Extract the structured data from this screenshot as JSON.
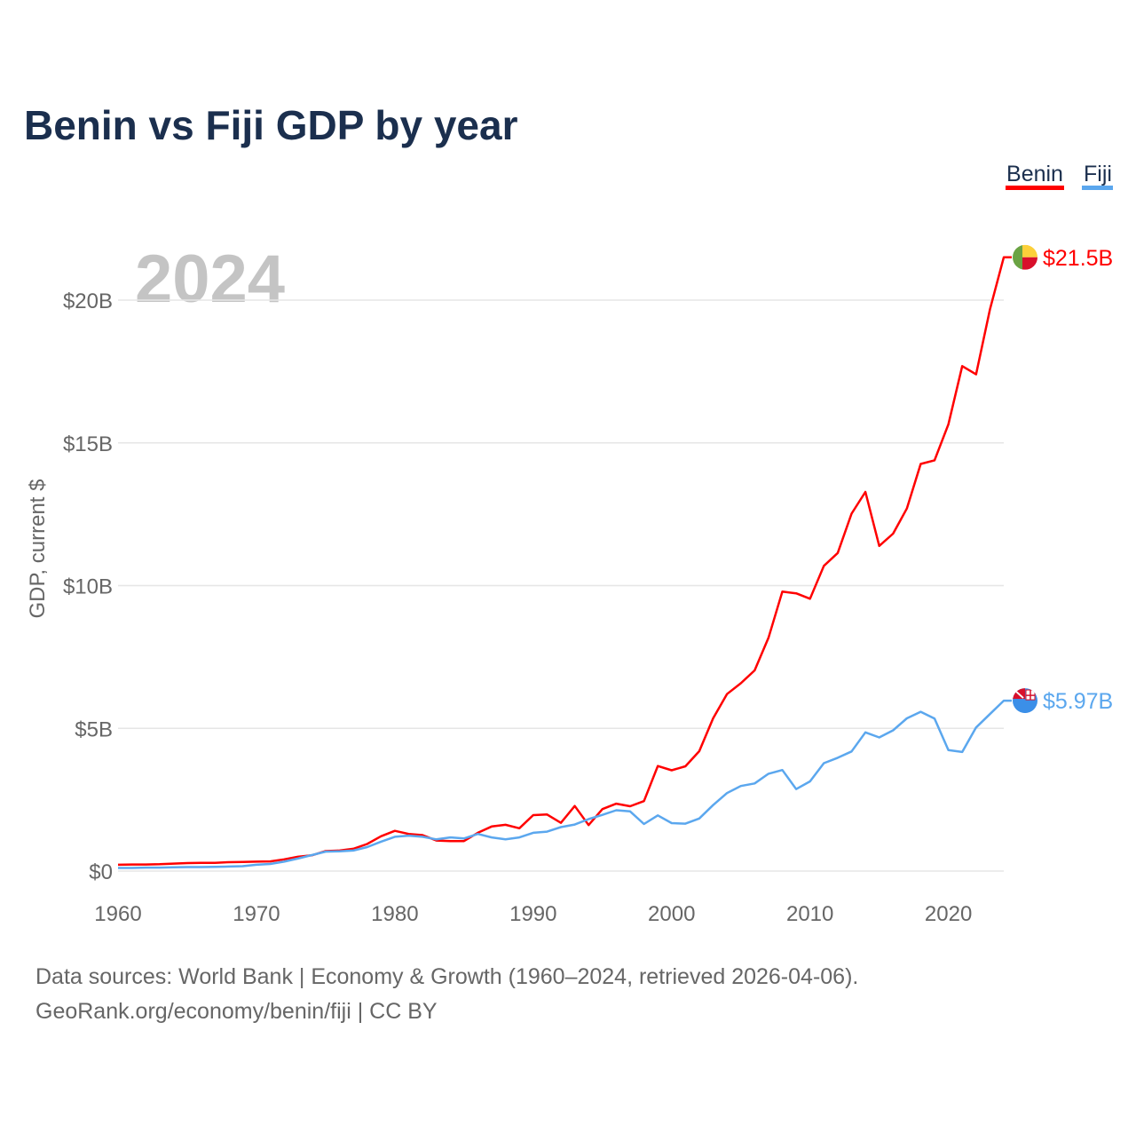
{
  "colors": {
    "benin": "#ff0000",
    "fiji": "#5ba7ee",
    "title": "#1b2f4e",
    "muted": "#666666",
    "grid": "#e6e6e6",
    "year": "#c4c4c4"
  },
  "chart_data": {
    "type": "line",
    "title": "Benin vs Fiji GDP by year",
    "ylabel": "GDP, current $",
    "xlabel": "",
    "current_year_label": "2024",
    "xlim": [
      1960,
      2024
    ],
    "ylim": [
      0,
      22
    ],
    "grid": true,
    "legend_placement": "top-right",
    "x_ticks": [
      1960,
      1970,
      1980,
      1990,
      2000,
      2010,
      2020
    ],
    "x_tick_labels": [
      "1960",
      "1970",
      "1980",
      "1990",
      "2000",
      "2010",
      "2020"
    ],
    "y_ticks": [
      0,
      5,
      10,
      15,
      20
    ],
    "y_tick_labels": [
      "$0",
      "$5B",
      "$10B",
      "$15B",
      "$20B"
    ],
    "x": [
      1960,
      1961,
      1962,
      1963,
      1964,
      1965,
      1966,
      1967,
      1968,
      1969,
      1970,
      1971,
      1972,
      1973,
      1974,
      1975,
      1976,
      1977,
      1978,
      1979,
      1980,
      1981,
      1982,
      1983,
      1984,
      1985,
      1986,
      1987,
      1988,
      1989,
      1990,
      1991,
      1992,
      1993,
      1994,
      1995,
      1996,
      1997,
      1998,
      1999,
      2000,
      2001,
      2002,
      2003,
      2004,
      2005,
      2006,
      2007,
      2008,
      2009,
      2010,
      2011,
      2012,
      2013,
      2014,
      2015,
      2016,
      2017,
      2018,
      2019,
      2020,
      2021,
      2022,
      2023,
      2024
    ],
    "series": [
      {
        "name": "Benin",
        "end_label": "$21.5B",
        "values": [
          0.22,
          0.23,
          0.23,
          0.24,
          0.26,
          0.28,
          0.29,
          0.29,
          0.31,
          0.32,
          0.33,
          0.34,
          0.41,
          0.5,
          0.55,
          0.7,
          0.72,
          0.78,
          0.95,
          1.22,
          1.41,
          1.3,
          1.26,
          1.07,
          1.05,
          1.05,
          1.34,
          1.56,
          1.62,
          1.5,
          1.96,
          1.98,
          1.69,
          2.28,
          1.61,
          2.17,
          2.36,
          2.27,
          2.45,
          3.68,
          3.53,
          3.67,
          4.2,
          5.35,
          6.2,
          6.58,
          7.03,
          8.17,
          9.79,
          9.73,
          9.54,
          10.69,
          11.14,
          12.52,
          13.28,
          11.39,
          11.82,
          12.7,
          14.26,
          14.39,
          15.65,
          17.69,
          17.4,
          19.67,
          21.5
        ]
      },
      {
        "name": "Fiji",
        "end_label": "$5.97B",
        "values": [
          0.11,
          0.11,
          0.12,
          0.12,
          0.13,
          0.14,
          0.14,
          0.15,
          0.16,
          0.17,
          0.22,
          0.25,
          0.33,
          0.44,
          0.56,
          0.68,
          0.69,
          0.72,
          0.84,
          1.03,
          1.2,
          1.24,
          1.2,
          1.11,
          1.18,
          1.14,
          1.3,
          1.18,
          1.11,
          1.18,
          1.34,
          1.38,
          1.54,
          1.63,
          1.82,
          1.97,
          2.13,
          2.09,
          1.65,
          1.95,
          1.68,
          1.66,
          1.84,
          2.31,
          2.73,
          2.98,
          3.07,
          3.41,
          3.54,
          2.87,
          3.14,
          3.78,
          3.97,
          4.19,
          4.86,
          4.68,
          4.93,
          5.35,
          5.58,
          5.34,
          4.24,
          4.17,
          5.03,
          5.5,
          5.97
        ]
      }
    ]
  },
  "footer": {
    "line1": "Data sources: World Bank | Economy & Growth (1960–2024, retrieved 2026-04-06).",
    "line2": "GeoRank.org/economy/benin/fiji | CC BY"
  }
}
